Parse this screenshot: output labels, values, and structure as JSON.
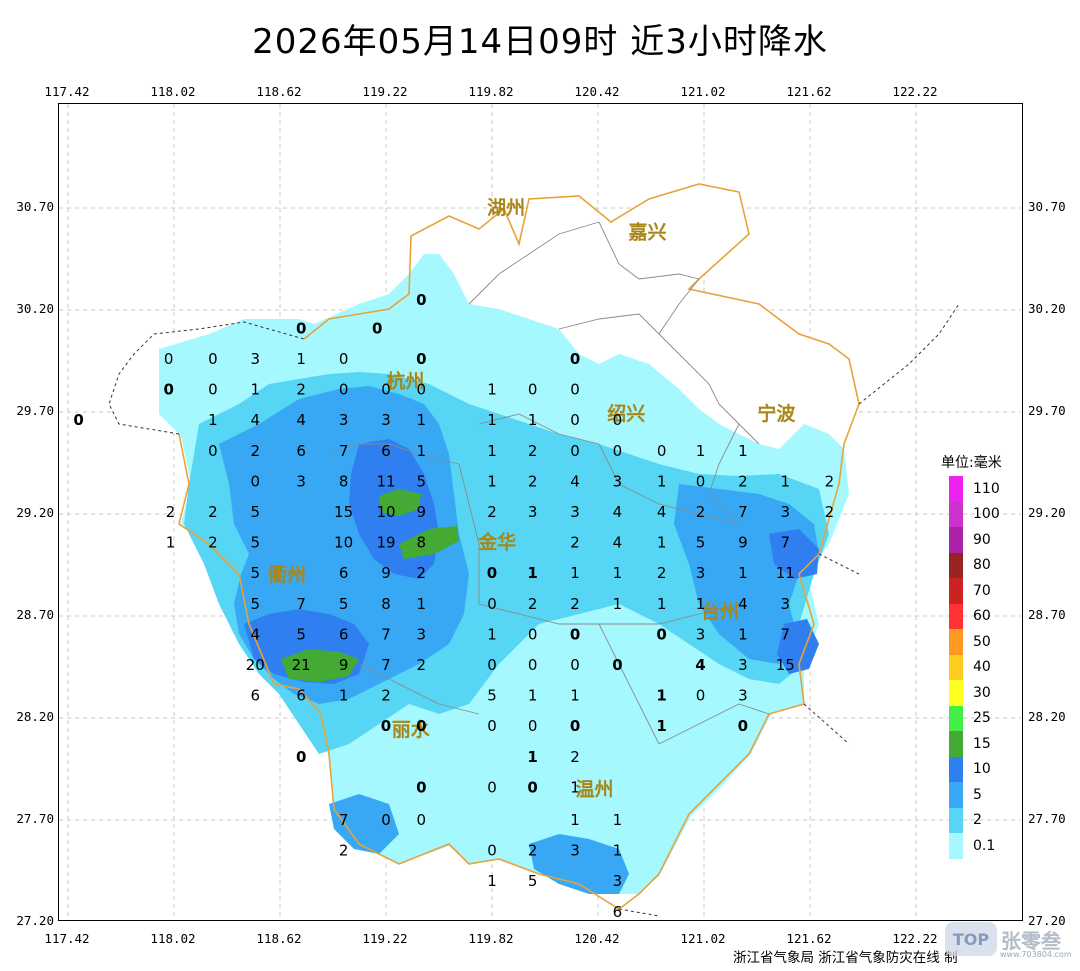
{
  "title": "2026年05月14日09时  近3小时降水",
  "axes": {
    "lon_ticks": [
      "117.42",
      "118.02",
      "118.62",
      "119.22",
      "119.82",
      "120.42",
      "121.02",
      "121.62",
      "122.22"
    ],
    "lat_ticks": [
      "30.70",
      "30.20",
      "29.70",
      "29.20",
      "28.70",
      "28.20",
      "27.70",
      "27.20"
    ]
  },
  "cities": [
    {
      "name": "湖州",
      "lon": 119.9,
      "lat": 30.7
    },
    {
      "name": "嘉兴",
      "lon": 120.7,
      "lat": 30.58
    },
    {
      "name": "杭州",
      "lon": 119.33,
      "lat": 29.85
    },
    {
      "name": "绍兴",
      "lon": 120.58,
      "lat": 29.69
    },
    {
      "name": "宁波",
      "lon": 121.43,
      "lat": 29.69
    },
    {
      "name": "金华",
      "lon": 119.85,
      "lat": 29.06
    },
    {
      "name": "衢州",
      "lon": 118.66,
      "lat": 28.9
    },
    {
      "name": "台州",
      "lon": 121.11,
      "lat": 28.72
    },
    {
      "name": "丽水",
      "lon": 119.36,
      "lat": 28.14
    },
    {
      "name": "温州",
      "lon": 120.4,
      "lat": 27.85
    }
  ],
  "stations": [
    {
      "v": "0",
      "lon": 119.42,
      "lat": 30.25,
      "b": true
    },
    {
      "v": "0",
      "lon": 118.74,
      "lat": 30.11,
      "b": true
    },
    {
      "v": "0",
      "lon": 119.17,
      "lat": 30.11,
      "b": true
    },
    {
      "v": "0",
      "lon": 117.99,
      "lat": 29.96
    },
    {
      "v": "0",
      "lon": 118.24,
      "lat": 29.96
    },
    {
      "v": "3",
      "lon": 118.48,
      "lat": 29.96
    },
    {
      "v": "1",
      "lon": 118.74,
      "lat": 29.96
    },
    {
      "v": "0",
      "lon": 118.98,
      "lat": 29.96
    },
    {
      "v": "0",
      "lon": 119.42,
      "lat": 29.96,
      "b": true
    },
    {
      "v": "0",
      "lon": 120.29,
      "lat": 29.96,
      "b": true
    },
    {
      "v": "0",
      "lon": 117.99,
      "lat": 29.81,
      "b": true
    },
    {
      "v": "0",
      "lon": 118.24,
      "lat": 29.81
    },
    {
      "v": "1",
      "lon": 118.48,
      "lat": 29.81
    },
    {
      "v": "2",
      "lon": 118.74,
      "lat": 29.81
    },
    {
      "v": "0",
      "lon": 118.98,
      "lat": 29.81
    },
    {
      "v": "0",
      "lon": 119.22,
      "lat": 29.81
    },
    {
      "v": "0",
      "lon": 119.42,
      "lat": 29.81
    },
    {
      "v": "1",
      "lon": 119.82,
      "lat": 29.81
    },
    {
      "v": "0",
      "lon": 120.05,
      "lat": 29.81
    },
    {
      "v": "0",
      "lon": 120.29,
      "lat": 29.81
    },
    {
      "v": "0",
      "lon": 117.48,
      "lat": 29.66,
      "b": true
    },
    {
      "v": "1",
      "lon": 118.24,
      "lat": 29.66
    },
    {
      "v": "4",
      "lon": 118.48,
      "lat": 29.66
    },
    {
      "v": "4",
      "lon": 118.74,
      "lat": 29.66
    },
    {
      "v": "3",
      "lon": 118.98,
      "lat": 29.66
    },
    {
      "v": "3",
      "lon": 119.22,
      "lat": 29.66
    },
    {
      "v": "1",
      "lon": 119.42,
      "lat": 29.66
    },
    {
      "v": "1",
      "lon": 119.82,
      "lat": 29.66
    },
    {
      "v": "1",
      "lon": 120.05,
      "lat": 29.66
    },
    {
      "v": "0",
      "lon": 120.29,
      "lat": 29.66
    },
    {
      "v": "0",
      "lon": 120.53,
      "lat": 29.66
    },
    {
      "v": "0",
      "lon": 118.24,
      "lat": 29.51
    },
    {
      "v": "2",
      "lon": 118.48,
      "lat": 29.51
    },
    {
      "v": "6",
      "lon": 118.74,
      "lat": 29.51
    },
    {
      "v": "7",
      "lon": 118.98,
      "lat": 29.51
    },
    {
      "v": "6",
      "lon": 119.22,
      "lat": 29.51
    },
    {
      "v": "1",
      "lon": 119.42,
      "lat": 29.51
    },
    {
      "v": "1",
      "lon": 119.82,
      "lat": 29.51
    },
    {
      "v": "2",
      "lon": 120.05,
      "lat": 29.51
    },
    {
      "v": "0",
      "lon": 120.29,
      "lat": 29.51
    },
    {
      "v": "0",
      "lon": 120.53,
      "lat": 29.51
    },
    {
      "v": "0",
      "lon": 120.78,
      "lat": 29.51
    },
    {
      "v": "1",
      "lon": 121.0,
      "lat": 29.51
    },
    {
      "v": "1",
      "lon": 121.24,
      "lat": 29.51
    },
    {
      "v": "0",
      "lon": 118.48,
      "lat": 29.36
    },
    {
      "v": "3",
      "lon": 118.74,
      "lat": 29.36
    },
    {
      "v": "8",
      "lon": 118.98,
      "lat": 29.36
    },
    {
      "v": "11",
      "lon": 119.22,
      "lat": 29.36
    },
    {
      "v": "5",
      "lon": 119.42,
      "lat": 29.36
    },
    {
      "v": "1",
      "lon": 119.82,
      "lat": 29.36
    },
    {
      "v": "2",
      "lon": 120.05,
      "lat": 29.36
    },
    {
      "v": "4",
      "lon": 120.29,
      "lat": 29.36
    },
    {
      "v": "3",
      "lon": 120.53,
      "lat": 29.36
    },
    {
      "v": "1",
      "lon": 120.78,
      "lat": 29.36
    },
    {
      "v": "0",
      "lon": 121.0,
      "lat": 29.36
    },
    {
      "v": "2",
      "lon": 121.24,
      "lat": 29.36
    },
    {
      "v": "1",
      "lon": 121.48,
      "lat": 29.36
    },
    {
      "v": "2",
      "lon": 121.73,
      "lat": 29.36
    },
    {
      "v": "2",
      "lon": 118.0,
      "lat": 29.21
    },
    {
      "v": "2",
      "lon": 118.24,
      "lat": 29.21
    },
    {
      "v": "5",
      "lon": 118.48,
      "lat": 29.21
    },
    {
      "v": "15",
      "lon": 118.98,
      "lat": 29.21
    },
    {
      "v": "10",
      "lon": 119.22,
      "lat": 29.21
    },
    {
      "v": "9",
      "lon": 119.42,
      "lat": 29.21
    },
    {
      "v": "2",
      "lon": 119.82,
      "lat": 29.21
    },
    {
      "v": "3",
      "lon": 120.05,
      "lat": 29.21
    },
    {
      "v": "3",
      "lon": 120.29,
      "lat": 29.21
    },
    {
      "v": "4",
      "lon": 120.53,
      "lat": 29.21
    },
    {
      "v": "4",
      "lon": 120.78,
      "lat": 29.21
    },
    {
      "v": "2",
      "lon": 121.0,
      "lat": 29.21
    },
    {
      "v": "7",
      "lon": 121.24,
      "lat": 29.21
    },
    {
      "v": "3",
      "lon": 121.48,
      "lat": 29.21
    },
    {
      "v": "2",
      "lon": 121.73,
      "lat": 29.21
    },
    {
      "v": "1",
      "lon": 118.0,
      "lat": 29.06
    },
    {
      "v": "2",
      "lon": 118.24,
      "lat": 29.06
    },
    {
      "v": "5",
      "lon": 118.48,
      "lat": 29.06
    },
    {
      "v": "10",
      "lon": 118.98,
      "lat": 29.06
    },
    {
      "v": "19",
      "lon": 119.22,
      "lat": 29.06
    },
    {
      "v": "8",
      "lon": 119.42,
      "lat": 29.06
    },
    {
      "v": "2",
      "lon": 120.29,
      "lat": 29.06
    },
    {
      "v": "4",
      "lon": 120.53,
      "lat": 29.06
    },
    {
      "v": "1",
      "lon": 120.78,
      "lat": 29.06
    },
    {
      "v": "5",
      "lon": 121.0,
      "lat": 29.06
    },
    {
      "v": "9",
      "lon": 121.24,
      "lat": 29.06
    },
    {
      "v": "7",
      "lon": 121.48,
      "lat": 29.06
    },
    {
      "v": "5",
      "lon": 118.48,
      "lat": 28.91
    },
    {
      "v": "6",
      "lon": 118.98,
      "lat": 28.91
    },
    {
      "v": "9",
      "lon": 119.22,
      "lat": 28.91
    },
    {
      "v": "2",
      "lon": 119.42,
      "lat": 28.91
    },
    {
      "v": "0",
      "lon": 119.82,
      "lat": 28.91,
      "b": true
    },
    {
      "v": "1",
      "lon": 120.05,
      "lat": 28.91,
      "b": true
    },
    {
      "v": "1",
      "lon": 120.29,
      "lat": 28.91
    },
    {
      "v": "1",
      "lon": 120.53,
      "lat": 28.91
    },
    {
      "v": "2",
      "lon": 120.78,
      "lat": 28.91
    },
    {
      "v": "3",
      "lon": 121.0,
      "lat": 28.91
    },
    {
      "v": "1",
      "lon": 121.24,
      "lat": 28.91
    },
    {
      "v": "11",
      "lon": 121.48,
      "lat": 28.91
    },
    {
      "v": "5",
      "lon": 118.48,
      "lat": 28.76
    },
    {
      "v": "7",
      "lon": 118.74,
      "lat": 28.76
    },
    {
      "v": "5",
      "lon": 118.98,
      "lat": 28.76
    },
    {
      "v": "8",
      "lon": 119.22,
      "lat": 28.76
    },
    {
      "v": "1",
      "lon": 119.42,
      "lat": 28.76
    },
    {
      "v": "0",
      "lon": 119.82,
      "lat": 28.76
    },
    {
      "v": "2",
      "lon": 120.05,
      "lat": 28.76
    },
    {
      "v": "2",
      "lon": 120.29,
      "lat": 28.76
    },
    {
      "v": "1",
      "lon": 120.53,
      "lat": 28.76
    },
    {
      "v": "1",
      "lon": 120.78,
      "lat": 28.76
    },
    {
      "v": "1",
      "lon": 121.0,
      "lat": 28.76
    },
    {
      "v": "4",
      "lon": 121.24,
      "lat": 28.76
    },
    {
      "v": "3",
      "lon": 121.48,
      "lat": 28.76
    },
    {
      "v": "4",
      "lon": 118.48,
      "lat": 28.61
    },
    {
      "v": "5",
      "lon": 118.74,
      "lat": 28.61
    },
    {
      "v": "6",
      "lon": 118.98,
      "lat": 28.61
    },
    {
      "v": "7",
      "lon": 119.22,
      "lat": 28.61
    },
    {
      "v": "3",
      "lon": 119.42,
      "lat": 28.61
    },
    {
      "v": "1",
      "lon": 119.82,
      "lat": 28.61
    },
    {
      "v": "0",
      "lon": 120.05,
      "lat": 28.61
    },
    {
      "v": "0",
      "lon": 120.29,
      "lat": 28.61,
      "b": true
    },
    {
      "v": "0",
      "lon": 120.78,
      "lat": 28.61,
      "b": true
    },
    {
      "v": "3",
      "lon": 121.0,
      "lat": 28.61
    },
    {
      "v": "1",
      "lon": 121.24,
      "lat": 28.61
    },
    {
      "v": "7",
      "lon": 121.48,
      "lat": 28.61
    },
    {
      "v": "20",
      "lon": 118.48,
      "lat": 28.46
    },
    {
      "v": "21",
      "lon": 118.74,
      "lat": 28.46
    },
    {
      "v": "9",
      "lon": 118.98,
      "lat": 28.46
    },
    {
      "v": "7",
      "lon": 119.22,
      "lat": 28.46
    },
    {
      "v": "2",
      "lon": 119.42,
      "lat": 28.46
    },
    {
      "v": "0",
      "lon": 119.82,
      "lat": 28.46
    },
    {
      "v": "0",
      "lon": 120.05,
      "lat": 28.46
    },
    {
      "v": "0",
      "lon": 120.29,
      "lat": 28.46
    },
    {
      "v": "0",
      "lon": 120.53,
      "lat": 28.46,
      "b": true
    },
    {
      "v": "4",
      "lon": 121.0,
      "lat": 28.46,
      "b": true
    },
    {
      "v": "3",
      "lon": 121.24,
      "lat": 28.46
    },
    {
      "v": "15",
      "lon": 121.48,
      "lat": 28.46
    },
    {
      "v": "6",
      "lon": 118.48,
      "lat": 28.31
    },
    {
      "v": "6",
      "lon": 118.74,
      "lat": 28.31
    },
    {
      "v": "1",
      "lon": 118.98,
      "lat": 28.31
    },
    {
      "v": "2",
      "lon": 119.22,
      "lat": 28.31
    },
    {
      "v": "5",
      "lon": 119.82,
      "lat": 28.31
    },
    {
      "v": "1",
      "lon": 120.05,
      "lat": 28.31
    },
    {
      "v": "1",
      "lon": 120.29,
      "lat": 28.31
    },
    {
      "v": "1",
      "lon": 120.78,
      "lat": 28.31,
      "b": true
    },
    {
      "v": "0",
      "lon": 121.0,
      "lat": 28.31
    },
    {
      "v": "3",
      "lon": 121.24,
      "lat": 28.31
    },
    {
      "v": "0",
      "lon": 119.22,
      "lat": 28.16,
      "b": true
    },
    {
      "v": "0",
      "lon": 119.42,
      "lat": 28.16,
      "b": true
    },
    {
      "v": "0",
      "lon": 119.82,
      "lat": 28.16
    },
    {
      "v": "0",
      "lon": 120.05,
      "lat": 28.16
    },
    {
      "v": "0",
      "lon": 120.29,
      "lat": 28.16,
      "b": true
    },
    {
      "v": "1",
      "lon": 120.78,
      "lat": 28.16,
      "b": true
    },
    {
      "v": "0",
      "lon": 121.24,
      "lat": 28.16,
      "b": true
    },
    {
      "v": "0",
      "lon": 118.74,
      "lat": 28.01,
      "b": true
    },
    {
      "v": "1",
      "lon": 120.05,
      "lat": 28.01,
      "b": true
    },
    {
      "v": "2",
      "lon": 120.29,
      "lat": 28.01
    },
    {
      "v": "0",
      "lon": 119.42,
      "lat": 27.86,
      "b": true
    },
    {
      "v": "0",
      "lon": 119.82,
      "lat": 27.86
    },
    {
      "v": "0",
      "lon": 120.05,
      "lat": 27.86,
      "b": true
    },
    {
      "v": "1",
      "lon": 120.29,
      "lat": 27.86
    },
    {
      "v": "7",
      "lon": 118.98,
      "lat": 27.7
    },
    {
      "v": "0",
      "lon": 119.22,
      "lat": 27.7
    },
    {
      "v": "0",
      "lon": 119.42,
      "lat": 27.7
    },
    {
      "v": "1",
      "lon": 120.29,
      "lat": 27.7
    },
    {
      "v": "1",
      "lon": 120.53,
      "lat": 27.7
    },
    {
      "v": "2",
      "lon": 118.98,
      "lat": 27.55
    },
    {
      "v": "0",
      "lon": 119.82,
      "lat": 27.55
    },
    {
      "v": "2",
      "lon": 120.05,
      "lat": 27.55
    },
    {
      "v": "3",
      "lon": 120.29,
      "lat": 27.55
    },
    {
      "v": "1",
      "lon": 120.53,
      "lat": 27.55
    },
    {
      "v": "1",
      "lon": 119.82,
      "lat": 27.4
    },
    {
      "v": "5",
      "lon": 120.05,
      "lat": 27.4
    },
    {
      "v": "3",
      "lon": 120.53,
      "lat": 27.4
    },
    {
      "v": "6",
      "lon": 120.53,
      "lat": 27.25
    }
  ],
  "legend": {
    "title": "单位:毫米",
    "items": [
      {
        "label": "110",
        "color": "#ee22ee"
      },
      {
        "label": "100",
        "color": "#cc33cc"
      },
      {
        "label": "90",
        "color": "#aa22aa"
      },
      {
        "label": "80",
        "color": "#992222"
      },
      {
        "label": "70",
        "color": "#cc2222"
      },
      {
        "label": "60",
        "color": "#ff3333"
      },
      {
        "label": "50",
        "color": "#ff9922"
      },
      {
        "label": "40",
        "color": "#ffcc22"
      },
      {
        "label": "30",
        "color": "#ffff22"
      },
      {
        "label": "25",
        "color": "#44ee44"
      },
      {
        "label": "15",
        "color": "#44aa33"
      },
      {
        "label": "10",
        "color": "#2f7ff0"
      },
      {
        "label": "5",
        "color": "#38a8f4"
      },
      {
        "label": "2",
        "color": "#56d6f4"
      },
      {
        "label": "0.1",
        "color": "#a6f8ff"
      }
    ]
  },
  "credit": "浙江省气象局  浙江省气象防灾在线  制",
  "watermark": {
    "logo": "TOP",
    "text": "张零叁",
    "url": "www.703804.com"
  }
}
